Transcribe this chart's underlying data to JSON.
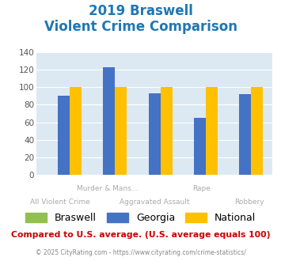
{
  "title_line1": "2019 Braswell",
  "title_line2": "Violent Crime Comparison",
  "categories": [
    "All Violent Crime",
    "Murder & Mans...",
    "Aggravated Assault",
    "Rape",
    "Robbery"
  ],
  "braswell_values": [
    0,
    0,
    0,
    0,
    0
  ],
  "georgia_values": [
    90,
    123,
    93,
    65,
    92
  ],
  "national_values": [
    100,
    100,
    100,
    100,
    100
  ],
  "braswell_color": "#92c050",
  "georgia_color": "#4472c4",
  "national_color": "#ffc000",
  "ylim": [
    0,
    140
  ],
  "yticks": [
    0,
    20,
    40,
    60,
    80,
    100,
    120,
    140
  ],
  "plot_bg_color": "#dce9f3",
  "fig_bg_color": "#ffffff",
  "title_color": "#1f77b4",
  "xlabel_row1": [
    "",
    "Murder & Mans...",
    "",
    "Rape",
    ""
  ],
  "xlabel_row2": [
    "All Violent Crime",
    "",
    "Aggravated Assault",
    "",
    "Robbery"
  ],
  "xlabel_color": "#aaaaaa",
  "legend_labels": [
    "Braswell",
    "Georgia",
    "National"
  ],
  "footer_text": "Compared to U.S. average. (U.S. average equals 100)",
  "footer_color": "#cc0000",
  "copyright_text": "© 2025 CityRating.com - https://www.cityrating.com/crime-statistics/",
  "copyright_color": "#888888",
  "grid_color": "#ffffff",
  "ytick_color": "#555555"
}
